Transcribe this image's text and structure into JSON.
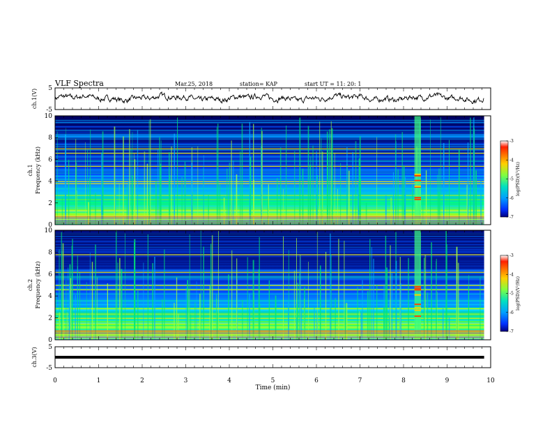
{
  "header": {
    "title": "VLF Spectra",
    "date": "Mar.25, 2018",
    "station": "station= KAP",
    "start": "start  UT =   11: 20: 1"
  },
  "colors": {
    "low": "#00007f",
    "mid": "#00e676",
    "high": "#ff1a00",
    "line": "#000000"
  },
  "chart_data": [
    {
      "type": "line",
      "ylabel": "ch.1(V)",
      "ylim": [
        -5,
        5
      ],
      "yticks": [
        "5",
        "-5"
      ],
      "x_range_min": [
        0,
        9.85
      ],
      "style": "noisy waveform oscillating around ~0.3 V with amplitude ~1.5 V"
    },
    {
      "type": "heatmap",
      "channel_label": "ch.1",
      "ylabel": "Frequency (kHz)",
      "ylim_khz": [
        0,
        10
      ],
      "yticks": [
        "0",
        "2",
        "4",
        "6",
        "8",
        "10"
      ],
      "colorbar": {
        "label": "log(PSD)(V²/Hz)",
        "range": [
          -7,
          -3
        ],
        "ticks": [
          "-3",
          "-4",
          "-5",
          "-6",
          "-7"
        ]
      },
      "burst_min": [
        8.25,
        8.4
      ],
      "hum_lines_khz": [
        3.8,
        4.0,
        5.4,
        6.6,
        7.0
      ]
    },
    {
      "type": "heatmap",
      "channel_label": "ch.2",
      "ylabel": "Frequency (kHz)",
      "ylim_khz": [
        0,
        10
      ],
      "yticks": [
        "0",
        "2",
        "4",
        "6",
        "8",
        "10"
      ],
      "colorbar": {
        "label": "log(PSD)(V²/Hz)",
        "range": [
          -7,
          -3
        ],
        "ticks": [
          "-3",
          "-4",
          "-5",
          "-6",
          "-7"
        ]
      },
      "burst_min": [
        8.25,
        8.4
      ],
      "hum_lines_khz": [
        2.0,
        4.6,
        5.0,
        6.2,
        7.8
      ]
    },
    {
      "type": "line",
      "ylabel": "ch.3(V)",
      "ylim": [
        -5,
        5
      ],
      "yticks": [
        "5",
        "-5"
      ],
      "constant_value": 0,
      "x_range_min": [
        0,
        9.85
      ]
    }
  ],
  "xaxis": {
    "label": "Time (min)",
    "range": [
      0,
      10
    ],
    "ticks": [
      "0",
      "1",
      "2",
      "3",
      "4",
      "5",
      "6",
      "7",
      "8",
      "9",
      "10"
    ]
  }
}
